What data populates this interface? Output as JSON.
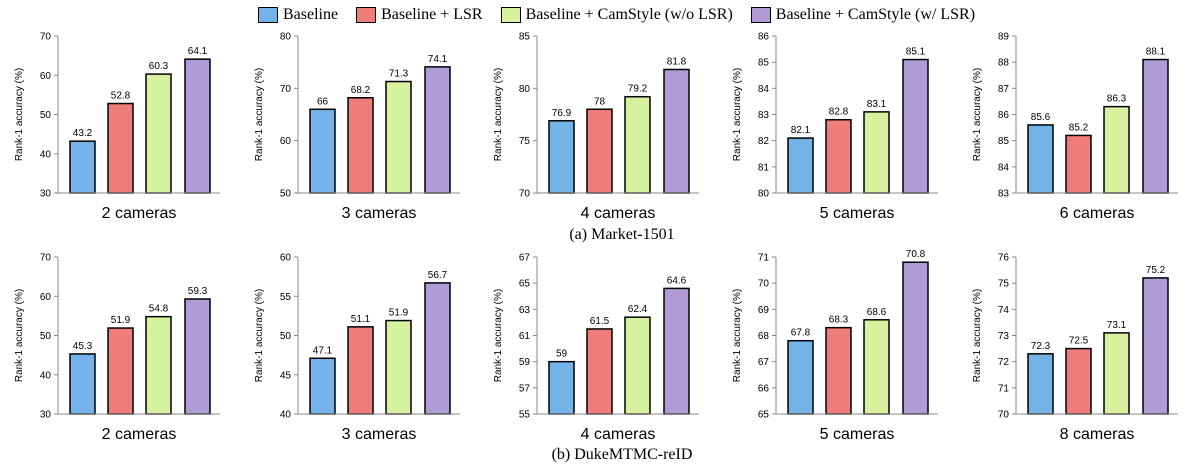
{
  "colors": {
    "baseline": "#74b3e8",
    "lsr": "#f07d7a",
    "camstyle_wo": "#d7f29e",
    "camstyle_w": "#b09bd6"
  },
  "legend": [
    {
      "label": "Baseline",
      "color": "#74b3e8"
    },
    {
      "label": "Baseline + LSR",
      "color": "#f07d7a"
    },
    {
      "label": "Baseline + CamStyle (w/o LSR)",
      "color": "#d7f29e"
    },
    {
      "label": "Baseline + CamStyle (w/ LSR)",
      "color": "#b09bd6"
    }
  ],
  "captions": {
    "market": "(a) Market-1501",
    "duke": "(b) DukeMTMC-reID"
  },
  "chart_data": [
    {
      "type": "bar",
      "xlabel": "2 cameras",
      "ylabel": "Rank-1 accuracy (%)",
      "ylim": [
        30,
        70
      ],
      "yticks": [
        30,
        40,
        50,
        60,
        70
      ],
      "values": [
        43.2,
        52.8,
        60.3,
        64.1
      ],
      "labels": [
        "43.2",
        "52.8",
        "60.3",
        "64.1"
      ]
    },
    {
      "type": "bar",
      "xlabel": "3 cameras",
      "ylabel": "Rank-1 accuracy (%)",
      "ylim": [
        50,
        80
      ],
      "yticks": [
        50,
        60,
        70,
        80
      ],
      "values": [
        66,
        68.2,
        71.3,
        74.1
      ],
      "labels": [
        "66",
        "68.2",
        "71.3",
        "74.1"
      ]
    },
    {
      "type": "bar",
      "xlabel": "4 cameras",
      "ylabel": "Rank-1 accuracy (%)",
      "ylim": [
        70,
        85
      ],
      "yticks": [
        70,
        75,
        80,
        85
      ],
      "values": [
        76.9,
        78,
        79.2,
        81.8
      ],
      "labels": [
        "76.9",
        "78",
        "79.2",
        "81.8"
      ]
    },
    {
      "type": "bar",
      "xlabel": "5 cameras",
      "ylabel": "Rank-1 accuracy (%)",
      "ylim": [
        80,
        86
      ],
      "yticks": [
        80,
        81,
        82,
        83,
        84,
        85,
        86
      ],
      "values": [
        82.1,
        82.8,
        83.1,
        85.1
      ],
      "labels": [
        "82.1",
        "82.8",
        "83.1",
        "85.1"
      ]
    },
    {
      "type": "bar",
      "xlabel": "6 cameras",
      "ylabel": "Rank-1 accuracy (%)",
      "ylim": [
        83,
        89
      ],
      "yticks": [
        83,
        84,
        85,
        86,
        87,
        88,
        89
      ],
      "values": [
        85.6,
        85.2,
        86.3,
        88.1
      ],
      "labels": [
        "85.6",
        "85.2",
        "86.3",
        "88.1"
      ]
    },
    {
      "type": "bar",
      "xlabel": "2 cameras",
      "ylabel": "Rank-1 accuracy (%)",
      "ylim": [
        30,
        70
      ],
      "yticks": [
        30,
        40,
        50,
        60,
        70
      ],
      "values": [
        45.3,
        51.9,
        54.8,
        59.3
      ],
      "labels": [
        "45.3",
        "51.9",
        "54.8",
        "59.3"
      ]
    },
    {
      "type": "bar",
      "xlabel": "3 cameras",
      "ylabel": "Rank-1 accuracy (%)",
      "ylim": [
        40,
        60
      ],
      "yticks": [
        40,
        45,
        50,
        55,
        60
      ],
      "values": [
        47.1,
        51.1,
        51.9,
        56.7
      ],
      "labels": [
        "47.1",
        "51.1",
        "51.9",
        "56.7"
      ]
    },
    {
      "type": "bar",
      "xlabel": "4 cameras",
      "ylabel": "Rank-1 accuracy (%)",
      "ylim": [
        55,
        67
      ],
      "yticks": [
        55,
        57,
        59,
        61,
        63,
        65,
        67
      ],
      "values": [
        59,
        61.5,
        62.4,
        64.6
      ],
      "labels": [
        "59",
        "61.5",
        "62.4",
        "64.6"
      ]
    },
    {
      "type": "bar",
      "xlabel": "5 cameras",
      "ylabel": "Rank-1 accuracy (%)",
      "ylim": [
        65,
        71
      ],
      "yticks": [
        65,
        66,
        67,
        68,
        69,
        70,
        71
      ],
      "values": [
        67.8,
        68.3,
        68.6,
        70.8
      ],
      "labels": [
        "67.8",
        "68.3",
        "68.6",
        "70.8"
      ]
    },
    {
      "type": "bar",
      "xlabel": "8 cameras",
      "ylabel": "Rank-1 accuracy (%)",
      "ylim": [
        70,
        76
      ],
      "yticks": [
        70,
        71,
        72,
        73,
        74,
        75,
        76
      ],
      "values": [
        72.3,
        72.5,
        73.1,
        75.2
      ],
      "labels": [
        "72.3",
        "72.5",
        "73.1",
        "75.2"
      ]
    }
  ]
}
